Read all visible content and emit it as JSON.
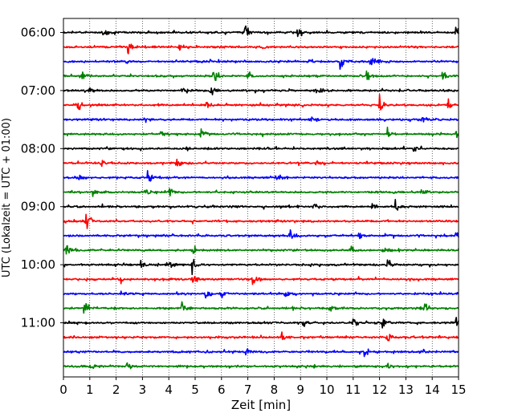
{
  "chart_data": {
    "type": "line",
    "title": "",
    "xlabel": "Zeit  [min]",
    "ylabel": "UTC (Lokalzeit = UTC + 01:00)",
    "xlim": [
      0,
      15
    ],
    "x_ticks": [
      "0",
      "1",
      "2",
      "3",
      "4",
      "5",
      "6",
      "7",
      "8",
      "9",
      "10",
      "11",
      "12",
      "13",
      "14",
      "15"
    ],
    "y_ticks": [
      {
        "label": "06:00",
        "trace": 0
      },
      {
        "label": "07:00",
        "trace": 4
      },
      {
        "label": "08:00",
        "trace": 8
      },
      {
        "label": "09:00",
        "trace": 12
      },
      {
        "label": "10:00",
        "trace": 16
      },
      {
        "label": "11:00",
        "trace": 20
      }
    ],
    "x_grid": true,
    "trace_interval_min": 15,
    "color_cycle": [
      "#000000",
      "#ff0000",
      "#0000ff",
      "#008000"
    ],
    "traces": [
      {
        "start": "06:00",
        "color": "#000000",
        "events": [
          {
            "t": 1.5,
            "a": 1.0
          },
          {
            "t": 6.9,
            "a": 1.6
          },
          {
            "t": 8.9,
            "a": 1.3
          },
          {
            "t": 14.9,
            "a": 1.8
          }
        ]
      },
      {
        "start": "06:15",
        "color": "#ff0000",
        "events": [
          {
            "t": 2.45,
            "a": 2.0
          },
          {
            "t": 4.4,
            "a": 0.8
          },
          {
            "t": 7.5,
            "a": 0.7
          }
        ]
      },
      {
        "start": "06:30",
        "color": "#0000ff",
        "events": [
          {
            "t": 2.4,
            "a": 0.7
          },
          {
            "t": 9.3,
            "a": 1.0
          },
          {
            "t": 10.5,
            "a": 2.0
          },
          {
            "t": 11.6,
            "a": 1.2
          },
          {
            "t": 11.8,
            "a": 0.9
          }
        ]
      },
      {
        "start": "06:45",
        "color": "#008000",
        "events": [
          {
            "t": 0.7,
            "a": 0.9
          },
          {
            "t": 5.7,
            "a": 1.8
          },
          {
            "t": 7.0,
            "a": 0.8
          },
          {
            "t": 11.5,
            "a": 1.3
          },
          {
            "t": 14.4,
            "a": 1.1
          }
        ]
      },
      {
        "start": "07:00",
        "color": "#000000",
        "events": [
          {
            "t": 1.0,
            "a": 0.8
          },
          {
            "t": 4.5,
            "a": 0.7
          },
          {
            "t": 5.6,
            "a": 0.9
          },
          {
            "t": 9.6,
            "a": 0.8
          }
        ]
      },
      {
        "start": "07:15",
        "color": "#ff0000",
        "events": [
          {
            "t": 0.5,
            "a": 1.6
          },
          {
            "t": 5.4,
            "a": 1.4
          },
          {
            "t": 12.0,
            "a": 1.8
          },
          {
            "t": 14.6,
            "a": 1.2
          }
        ]
      },
      {
        "start": "07:30",
        "color": "#0000ff",
        "events": [
          {
            "t": 3.1,
            "a": 0.8
          },
          {
            "t": 9.4,
            "a": 0.9
          },
          {
            "t": 13.6,
            "a": 1.3
          }
        ]
      },
      {
        "start": "07:45",
        "color": "#008000",
        "events": [
          {
            "t": 3.7,
            "a": 1.0
          },
          {
            "t": 5.2,
            "a": 1.1
          },
          {
            "t": 12.3,
            "a": 1.1
          },
          {
            "t": 14.9,
            "a": 1.4
          }
        ]
      },
      {
        "start": "08:00",
        "color": "#000000",
        "events": [
          {
            "t": 4.7,
            "a": 0.7
          },
          {
            "t": 13.3,
            "a": 0.9
          }
        ]
      },
      {
        "start": "08:15",
        "color": "#ff0000",
        "events": [
          {
            "t": 1.4,
            "a": 1.2
          },
          {
            "t": 4.3,
            "a": 1.0
          },
          {
            "t": 9.6,
            "a": 0.8
          }
        ]
      },
      {
        "start": "08:30",
        "color": "#0000ff",
        "events": [
          {
            "t": 0.6,
            "a": 1.0
          },
          {
            "t": 3.2,
            "a": 1.5
          },
          {
            "t": 8.1,
            "a": 1.4
          }
        ]
      },
      {
        "start": "08:45",
        "color": "#008000",
        "events": [
          {
            "t": 1.1,
            "a": 0.9
          },
          {
            "t": 3.1,
            "a": 0.8
          },
          {
            "t": 4.0,
            "a": 1.3
          },
          {
            "t": 13.6,
            "a": 0.8
          }
        ]
      },
      {
        "start": "09:00",
        "color": "#000000",
        "events": [
          {
            "t": 9.5,
            "a": 1.1
          },
          {
            "t": 11.7,
            "a": 1.1
          },
          {
            "t": 12.6,
            "a": 1.7
          }
        ]
      },
      {
        "start": "09:15",
        "color": "#ff0000",
        "events": [
          {
            "t": 0.85,
            "a": 2.0
          }
        ]
      },
      {
        "start": "09:30",
        "color": "#0000ff",
        "events": [
          {
            "t": 8.6,
            "a": 1.3
          },
          {
            "t": 11.2,
            "a": 0.8
          },
          {
            "t": 14.9,
            "a": 1.0
          }
        ]
      },
      {
        "start": "09:45",
        "color": "#008000",
        "events": [
          {
            "t": 0.1,
            "a": 1.5
          },
          {
            "t": 4.9,
            "a": 1.0
          },
          {
            "t": 10.9,
            "a": 1.4
          },
          {
            "t": 12.1,
            "a": 1.0
          }
        ]
      },
      {
        "start": "10:00",
        "color": "#000000",
        "events": [
          {
            "t": 2.95,
            "a": 1.4
          },
          {
            "t": 3.9,
            "a": 1.5
          },
          {
            "t": 4.9,
            "a": 1.9
          },
          {
            "t": 12.3,
            "a": 1.6
          }
        ]
      },
      {
        "start": "10:15",
        "color": "#ff0000",
        "events": [
          {
            "t": 2.1,
            "a": 1.6
          },
          {
            "t": 4.9,
            "a": 1.3
          },
          {
            "t": 7.2,
            "a": 1.4
          }
        ]
      },
      {
        "start": "10:30",
        "color": "#0000ff",
        "events": [
          {
            "t": 2.2,
            "a": 0.8
          },
          {
            "t": 5.4,
            "a": 1.6
          },
          {
            "t": 6.0,
            "a": 0.8
          },
          {
            "t": 8.4,
            "a": 0.7
          }
        ]
      },
      {
        "start": "10:45",
        "color": "#008000",
        "events": [
          {
            "t": 0.8,
            "a": 1.9
          },
          {
            "t": 4.5,
            "a": 0.8
          },
          {
            "t": 10.1,
            "a": 1.1
          },
          {
            "t": 13.7,
            "a": 1.0
          }
        ]
      },
      {
        "start": "11:00",
        "color": "#000000",
        "events": [
          {
            "t": 9.1,
            "a": 1.3
          },
          {
            "t": 11.0,
            "a": 1.1
          },
          {
            "t": 12.1,
            "a": 1.9
          },
          {
            "t": 14.9,
            "a": 1.6
          }
        ]
      },
      {
        "start": "11:15",
        "color": "#ff0000",
        "events": [
          {
            "t": 8.3,
            "a": 1.0
          },
          {
            "t": 12.3,
            "a": 1.4
          }
        ]
      },
      {
        "start": "11:30",
        "color": "#0000ff",
        "events": [
          {
            "t": 6.9,
            "a": 0.8
          },
          {
            "t": 11.4,
            "a": 1.6
          },
          {
            "t": 13.6,
            "a": 1.0
          }
        ]
      },
      {
        "start": "11:45",
        "color": "#008000",
        "events": [
          {
            "t": 1.0,
            "a": 0.9
          },
          {
            "t": 2.4,
            "a": 1.1
          },
          {
            "t": 12.3,
            "a": 0.8
          }
        ]
      }
    ]
  }
}
